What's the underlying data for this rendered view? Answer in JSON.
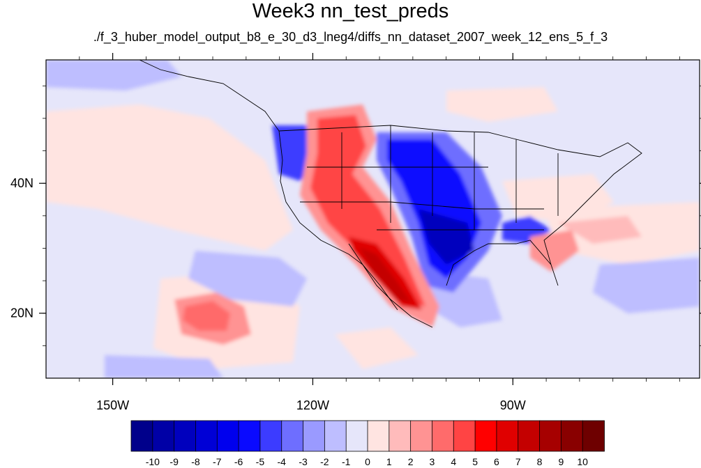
{
  "title": "Week3 nn_test_preds",
  "subtitle": "./f_3_huber_model_output_b8_e_30_d3_lneg4/diffs_nn_dataset_2007_week_12_ens_5_f_3",
  "map": {
    "lon_range": [
      -160,
      -62
    ],
    "lat_range": [
      10,
      59
    ],
    "x_ticks": [
      {
        "value": -150,
        "label": "150W"
      },
      {
        "value": -120,
        "label": "120W"
      },
      {
        "value": -90,
        "label": "90W"
      }
    ],
    "y_ticks": [
      {
        "value": 40,
        "label": "40N"
      },
      {
        "value": 20,
        "label": "20N"
      }
    ],
    "background_color": "#e6e6fa"
  },
  "colorbar": {
    "levels": [
      "-10",
      "-9",
      "-8",
      "-7",
      "-6",
      "-5",
      "-4",
      "-3",
      "-2",
      "-1",
      "0",
      "1",
      "2",
      "3",
      "4",
      "5",
      "6",
      "7",
      "8",
      "9",
      "10"
    ],
    "colors": [
      "#00008b",
      "#0000a6",
      "#0000be",
      "#0000d6",
      "#0000ee",
      "#0a0aff",
      "#3c3cff",
      "#6e6eff",
      "#9a9aff",
      "#bebeff",
      "#e6e6fa",
      "#ffe4e1",
      "#ffbbbb",
      "#ff9393",
      "#ff6b6b",
      "#ff4444",
      "#ff0000",
      "#e00000",
      "#c40000",
      "#a60000",
      "#890000",
      "#6e0000"
    ]
  }
}
